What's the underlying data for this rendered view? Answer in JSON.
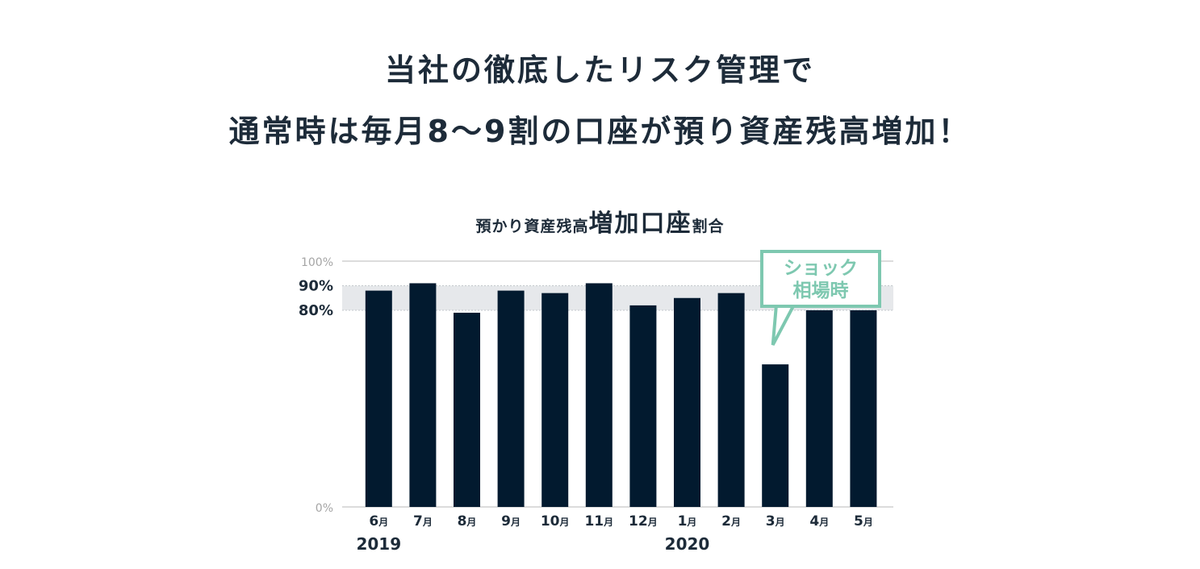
{
  "headline": {
    "line1": "当社の徹底したリスク管理で",
    "line2": "通常時は毎月8〜9割の口座が預り資産残高増加！"
  },
  "chart_title": {
    "prefix": "預かり資産残高",
    "emphasis": "増加口座",
    "suffix": "割合"
  },
  "callout": {
    "line1": "ショック",
    "line2": "相場時",
    "color": "#7ec8b0"
  },
  "colors": {
    "bar": "#021a2f",
    "band": "#e6e8eb",
    "grid": "#dcdcdc",
    "text": "#1d2b39",
    "muted_tick": "#a5a5a5"
  },
  "chart_data": {
    "type": "bar",
    "title": "預かり資産残高増加口座割合",
    "categories": [
      "6月",
      "7月",
      "8月",
      "9月",
      "10月",
      "11月",
      "12月",
      "1月",
      "2月",
      "3月",
      "4月",
      "5月"
    ],
    "category_numbers": [
      "6",
      "7",
      "8",
      "9",
      "10",
      "11",
      "12",
      "1",
      "2",
      "3",
      "4",
      "5"
    ],
    "month_suffix": "月",
    "year_labels": [
      {
        "text": "2019",
        "category_index": 0
      },
      {
        "text": "2020",
        "category_index": 7
      }
    ],
    "values": [
      88,
      91,
      79,
      88,
      87,
      91,
      82,
      85,
      87,
      58,
      80,
      80
    ],
    "unit": "%",
    "ylim": [
      0,
      100
    ],
    "y_ticks": [
      {
        "value": 0,
        "label": "0%",
        "style": "muted"
      },
      {
        "value": 80,
        "label": "80%",
        "style": "bold"
      },
      {
        "value": 90,
        "label": "90%",
        "style": "bold"
      },
      {
        "value": 100,
        "label": "100%",
        "style": "muted"
      }
    ],
    "highlight_band": [
      80,
      90
    ],
    "annotated_category_index": 9,
    "grid": true,
    "legend": "none"
  }
}
